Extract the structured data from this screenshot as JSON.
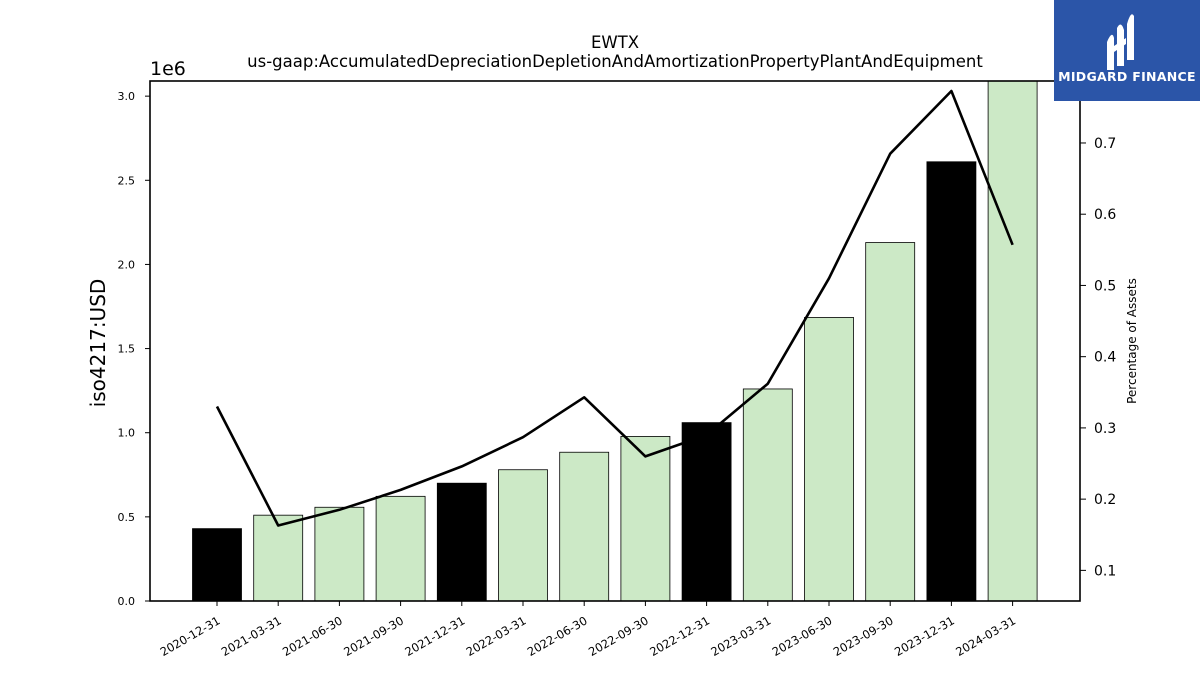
{
  "title": "EWTX",
  "subtitle": "us-gaap:AccumulatedDepreciationDepletionAndAmortizationPropertyPlantAndEquipment",
  "logo": {
    "text": "MIDGARD FINANCE",
    "icon": "midgard-logo-icon",
    "bg_color": "#2b55a8"
  },
  "colors": {
    "bar_light": "#cce9c6",
    "bar_dark": "#000000",
    "line": "#000000"
  },
  "chart_data": {
    "type": "bar",
    "categories": [
      "2020-12-31",
      "2021-03-31",
      "2021-06-30",
      "2021-09-30",
      "2021-12-31",
      "2022-03-31",
      "2022-06-30",
      "2022-09-30",
      "2022-12-31",
      "2023-03-31",
      "2023-06-30",
      "2023-09-30",
      "2023-12-31",
      "2024-03-31"
    ],
    "values": [
      430000,
      510000,
      557000,
      622000,
      700000,
      780000,
      884000,
      978000,
      1060000,
      1260000,
      1685000,
      2130000,
      2610000,
      3090000
    ],
    "highlighted": [
      true,
      false,
      false,
      false,
      true,
      false,
      false,
      false,
      true,
      false,
      false,
      false,
      true,
      false
    ],
    "ylabel": "iso4217:USD",
    "y_offset_text": "1e6",
    "ylim": [
      0,
      3.09
    ],
    "yticks": [
      "0.0",
      "0.5",
      "1.0",
      "1.5",
      "2.0",
      "2.5",
      "3.0"
    ],
    "secondary": {
      "type": "line",
      "name": "Percentage of Assets",
      "ylabel": "Percentage of Assets",
      "values": [
        0.33,
        0.163,
        0.185,
        0.213,
        0.246,
        0.287,
        0.343,
        0.26,
        0.29,
        0.362,
        0.51,
        0.685,
        0.773,
        0.557
      ],
      "ylim": [
        0.057,
        0.787
      ],
      "yticks": [
        "0.1",
        "0.2",
        "0.3",
        "0.4",
        "0.5",
        "0.6",
        "0.7"
      ]
    },
    "grid": false,
    "legend": "none"
  }
}
